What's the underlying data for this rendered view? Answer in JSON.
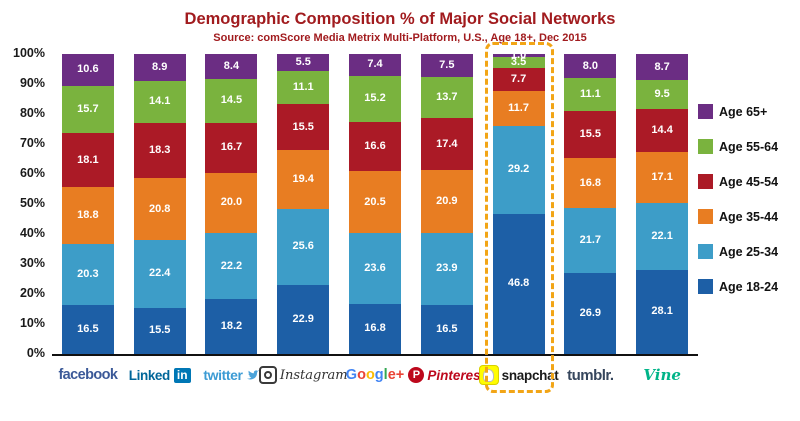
{
  "title": "Demographic Composition % of Major Social Networks",
  "subtitle": "Source: comScore Media Metrix Multi-Platform, U.S., Age 18+, Dec 2015",
  "chart_data": {
    "type": "bar",
    "stacked": true,
    "title": "Demographic Composition % of Major Social Networks",
    "categories": [
      "facebook",
      "LinkedIn",
      "twitter",
      "Instagram",
      "Google+",
      "Pinterest",
      "snapchat",
      "tumblr",
      "Vine"
    ],
    "series": [
      {
        "name": "Age 18-24",
        "color": "#1D5FA6",
        "values": [
          16.5,
          15.5,
          18.2,
          22.9,
          16.8,
          16.5,
          46.8,
          26.9,
          28.1
        ]
      },
      {
        "name": "Age 25-34",
        "color": "#3D9DC8",
        "values": [
          20.3,
          22.4,
          22.2,
          25.6,
          23.6,
          23.9,
          29.2,
          21.7,
          22.1
        ]
      },
      {
        "name": "Age 35-44",
        "color": "#E87D22",
        "values": [
          18.8,
          20.8,
          20.0,
          19.4,
          20.5,
          20.9,
          11.7,
          16.8,
          17.1
        ]
      },
      {
        "name": "Age 45-54",
        "color": "#AB1A26",
        "values": [
          18.1,
          18.3,
          16.7,
          15.5,
          16.6,
          17.4,
          7.7,
          15.5,
          14.4
        ]
      },
      {
        "name": "Age 55-64",
        "color": "#7AB33E",
        "values": [
          15.7,
          14.1,
          14.5,
          11.1,
          15.2,
          13.7,
          3.5,
          11.1,
          9.5
        ]
      },
      {
        "name": "Age 65+",
        "color": "#6B2D83",
        "values": [
          10.6,
          8.9,
          8.4,
          5.5,
          7.4,
          7.5,
          1.0,
          8.0,
          8.7
        ]
      }
    ],
    "yticks": [
      "100%",
      "90%",
      "80%",
      "70%",
      "60%",
      "50%",
      "40%",
      "30%",
      "20%",
      "10%",
      "0%"
    ],
    "ylim": [
      0,
      100
    ],
    "grid": false,
    "legend_position": "right",
    "highlighted_category": "snapchat",
    "highlight_color": "#F2A516"
  },
  "legend_order": [
    "Age 65+",
    "Age 55-64",
    "Age 45-54",
    "Age 35-44",
    "Age 25-34",
    "Age 18-24"
  ],
  "logos": {
    "facebook": {
      "text": "facebook",
      "color": "#3B5998"
    },
    "linkedin": {
      "text": "Linked",
      "badge": "in",
      "color": "#0077B5"
    },
    "twitter": {
      "text": "twitter",
      "color": "#55ACEE"
    },
    "instagram": {
      "text": "Instagram",
      "color": "#333333"
    },
    "googleplus": {
      "letters": [
        "G",
        "o",
        "o",
        "g",
        "l",
        "e",
        "+"
      ]
    },
    "pinterest": {
      "badge": "P",
      "text": "Pinterest",
      "color": "#BD081C"
    },
    "snapchat": {
      "text": "snapchat",
      "color": "#FFFC00"
    },
    "tumblr": {
      "text": "tumblr.",
      "color": "#36465D"
    },
    "vine": {
      "text": "Vine",
      "color": "#00B488"
    }
  }
}
